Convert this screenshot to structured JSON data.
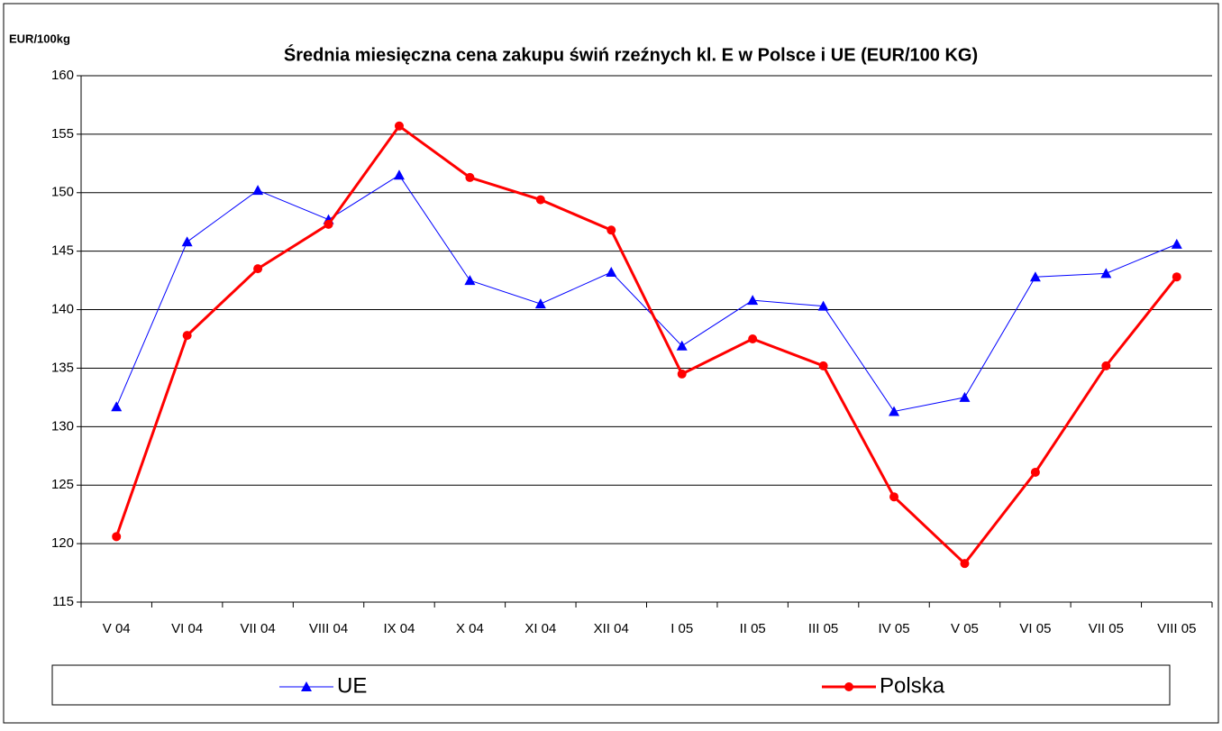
{
  "chart_data": {
    "type": "line",
    "title": "Średnia miesięczna cena zakupu świń rzeźnych kl. E w  Polsce i UE (EUR/100 KG)",
    "y_label": "EUR/100kg",
    "categories": [
      "V 04",
      "VI 04",
      "VII 04",
      "VIII 04",
      "IX 04",
      "X 04",
      "XI 04",
      "XII 04",
      "I 05",
      "II 05",
      "III 05",
      "IV 05",
      "V 05",
      "VI 05",
      "VII 05",
      "VIII 05"
    ],
    "series": [
      {
        "name": "UE",
        "color": "#0000ff",
        "marker": "triangle",
        "values": [
          131.7,
          145.8,
          150.2,
          147.7,
          151.5,
          142.5,
          140.5,
          143.2,
          136.9,
          140.8,
          140.3,
          131.3,
          132.5,
          142.8,
          143.1,
          145.6
        ]
      },
      {
        "name": "Polska",
        "color": "#ff0000",
        "marker": "circle",
        "values": [
          120.6,
          137.8,
          143.5,
          147.3,
          155.7,
          151.3,
          149.4,
          146.8,
          134.5,
          137.5,
          135.2,
          124.0,
          118.3,
          126.1,
          135.2,
          142.8
        ]
      }
    ],
    "ylim": [
      115,
      160
    ],
    "yticks": [
      115,
      120,
      125,
      130,
      135,
      140,
      145,
      150,
      155,
      160
    ],
    "grid": true,
    "legend": "bottom"
  }
}
